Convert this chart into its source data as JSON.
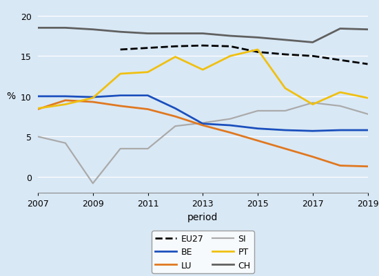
{
  "title": "",
  "xlabel": "period",
  "ylabel": "%",
  "xlim": [
    2007,
    2019
  ],
  "ylim": [
    -2,
    21
  ],
  "yticks": [
    0,
    5,
    10,
    15,
    20
  ],
  "xticks": [
    2007,
    2009,
    2011,
    2013,
    2015,
    2017,
    2019
  ],
  "background_color": "#d9e8f5",
  "series": {
    "EU27": {
      "x": [
        2010,
        2011,
        2012,
        2013,
        2014,
        2015,
        2016,
        2017,
        2018,
        2019
      ],
      "y": [
        15.8,
        16.0,
        16.2,
        16.3,
        16.2,
        15.5,
        15.2,
        15.0,
        14.5,
        14.0
      ],
      "color": "black",
      "linestyle": "--",
      "linewidth": 2.0,
      "zorder": 3
    },
    "BE": {
      "x": [
        2007,
        2008,
        2009,
        2010,
        2011,
        2012,
        2013,
        2014,
        2015,
        2016,
        2017,
        2018,
        2019
      ],
      "y": [
        10.0,
        10.0,
        9.9,
        10.1,
        10.1,
        8.5,
        6.6,
        6.4,
        6.0,
        5.8,
        5.7,
        5.8,
        5.8
      ],
      "color": "#1a4fbd",
      "linestyle": "-",
      "linewidth": 2.0,
      "zorder": 3
    },
    "LU": {
      "x": [
        2007,
        2008,
        2009,
        2010,
        2011,
        2012,
        2013,
        2014,
        2015,
        2016,
        2017,
        2018,
        2019
      ],
      "y": [
        8.4,
        9.5,
        9.3,
        8.8,
        8.4,
        7.5,
        6.4,
        5.5,
        4.5,
        3.5,
        2.5,
        1.4,
        1.3
      ],
      "color": "#e07820",
      "linestyle": "-",
      "linewidth": 2.0,
      "zorder": 3
    },
    "SI": {
      "x": [
        2007,
        2008,
        2009,
        2010,
        2011,
        2012,
        2013,
        2014,
        2015,
        2016,
        2017,
        2018,
        2019
      ],
      "y": [
        5.0,
        4.2,
        -0.8,
        3.5,
        3.5,
        6.3,
        6.7,
        7.2,
        8.2,
        8.2,
        9.2,
        8.8,
        7.8
      ],
      "color": "#aaaaaa",
      "linestyle": "-",
      "linewidth": 1.6,
      "zorder": 2
    },
    "PT": {
      "x": [
        2007,
        2008,
        2009,
        2010,
        2011,
        2012,
        2013,
        2014,
        2015,
        2016,
        2017,
        2018,
        2019
      ],
      "y": [
        8.5,
        9.0,
        9.8,
        12.8,
        13.0,
        14.9,
        13.3,
        15.0,
        15.8,
        11.0,
        9.0,
        10.5,
        9.8
      ],
      "color": "#f0c010",
      "linestyle": "-",
      "linewidth": 2.0,
      "zorder": 3
    },
    "CH": {
      "x": [
        2007,
        2008,
        2009,
        2010,
        2011,
        2012,
        2013,
        2014,
        2015,
        2016,
        2017,
        2018,
        2019
      ],
      "y": [
        18.5,
        18.5,
        18.3,
        18.0,
        17.8,
        17.8,
        17.8,
        17.5,
        17.3,
        17.0,
        16.7,
        18.4,
        18.3
      ],
      "color": "#606060",
      "linestyle": "-",
      "linewidth": 2.0,
      "zorder": 3
    }
  },
  "legend_order": [
    "EU27",
    "BE",
    "LU",
    "SI",
    "PT",
    "CH"
  ],
  "legend_ncol": 2,
  "legend_fontsize": 9
}
